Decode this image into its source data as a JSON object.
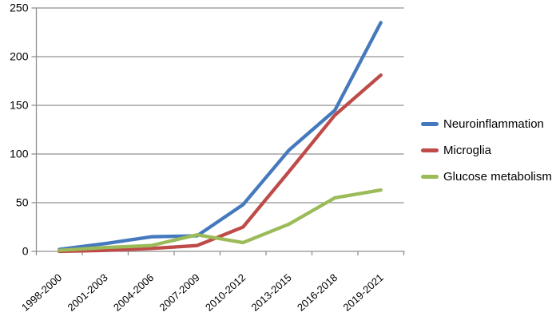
{
  "figure": {
    "background": "#ffffff",
    "axis_color": "#8f8f8f",
    "gridline_color": "#919191",
    "text_color": "#000000"
  },
  "chart_data": {
    "type": "line",
    "title": "",
    "xlabel": "",
    "ylabel": "",
    "categories": [
      "1998-2000",
      "2001-2003",
      "2004-2006",
      "2007-2009",
      "2010-2012",
      "2013-2015",
      "2016-2018",
      "2019-2021"
    ],
    "series": [
      {
        "name": "Neuroinflammation",
        "color": "#4579BD",
        "values": [
          2,
          8,
          15,
          16,
          48,
          104,
          145,
          235
        ]
      },
      {
        "name": "Microglia",
        "color": "#BE4B48",
        "values": [
          0,
          1,
          3,
          6,
          25,
          82,
          140,
          181
        ]
      },
      {
        "name": "Glucose metabolism",
        "color": "#9BBB59",
        "values": [
          1,
          4,
          6,
          17,
          9,
          28,
          55,
          63
        ]
      }
    ],
    "ylim": [
      0,
      250
    ],
    "yticks": [
      0,
      50,
      100,
      150,
      200,
      250
    ],
    "grid": true,
    "legend_position": "right"
  }
}
